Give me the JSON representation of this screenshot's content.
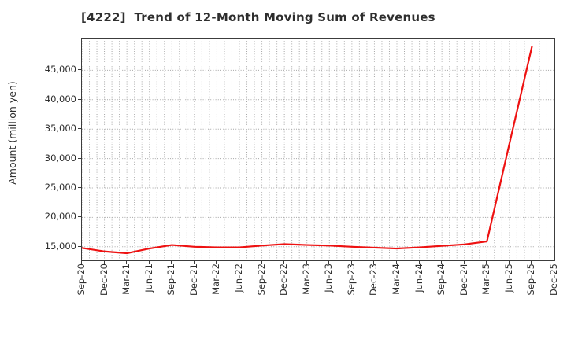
{
  "chart": {
    "title": "[4222]  Trend of 12-Month Moving Sum of Revenues",
    "ylabel": "Amount (million yen)"
  },
  "chart_data": {
    "type": "line",
    "title": "[4222]  Trend of 12-Month Moving Sum of Revenues",
    "xlabel": "",
    "ylabel": "Amount (million yen)",
    "categories": [
      "Sep-20",
      "Dec-20",
      "Mar-21",
      "Jun-21",
      "Sep-21",
      "Dec-21",
      "Mar-22",
      "Jun-22",
      "Sep-22",
      "Dec-22",
      "Mar-23",
      "Jun-23",
      "Sep-23",
      "Dec-23",
      "Mar-24",
      "Jun-24",
      "Sep-24",
      "Dec-24",
      "Mar-25",
      "Jun-25",
      "Sep-25",
      "Dec-25"
    ],
    "series": [
      {
        "name": "12-Month Moving Sum of Revenues",
        "color": "#ee1111",
        "values": [
          14800,
          14200,
          13900,
          14700,
          15300,
          15000,
          14900,
          14900,
          15200,
          15450,
          15300,
          15200,
          15000,
          14850,
          14700,
          14900,
          15150,
          15400,
          15900,
          32500,
          49000,
          null
        ]
      }
    ],
    "ylim": [
      12700,
      50400
    ],
    "yticks": [
      15000,
      20000,
      25000,
      30000,
      35000,
      40000,
      45000
    ],
    "ytick_labels": [
      "15,000",
      "20,000",
      "25,000",
      "30,000",
      "35,000",
      "40,000",
      "45,000"
    ],
    "grid": "dotted",
    "grid_color": "#a6a6a6",
    "minor_vertical_gridlines_per_quarter": 3,
    "legend": "none",
    "line_width": 2.2
  }
}
